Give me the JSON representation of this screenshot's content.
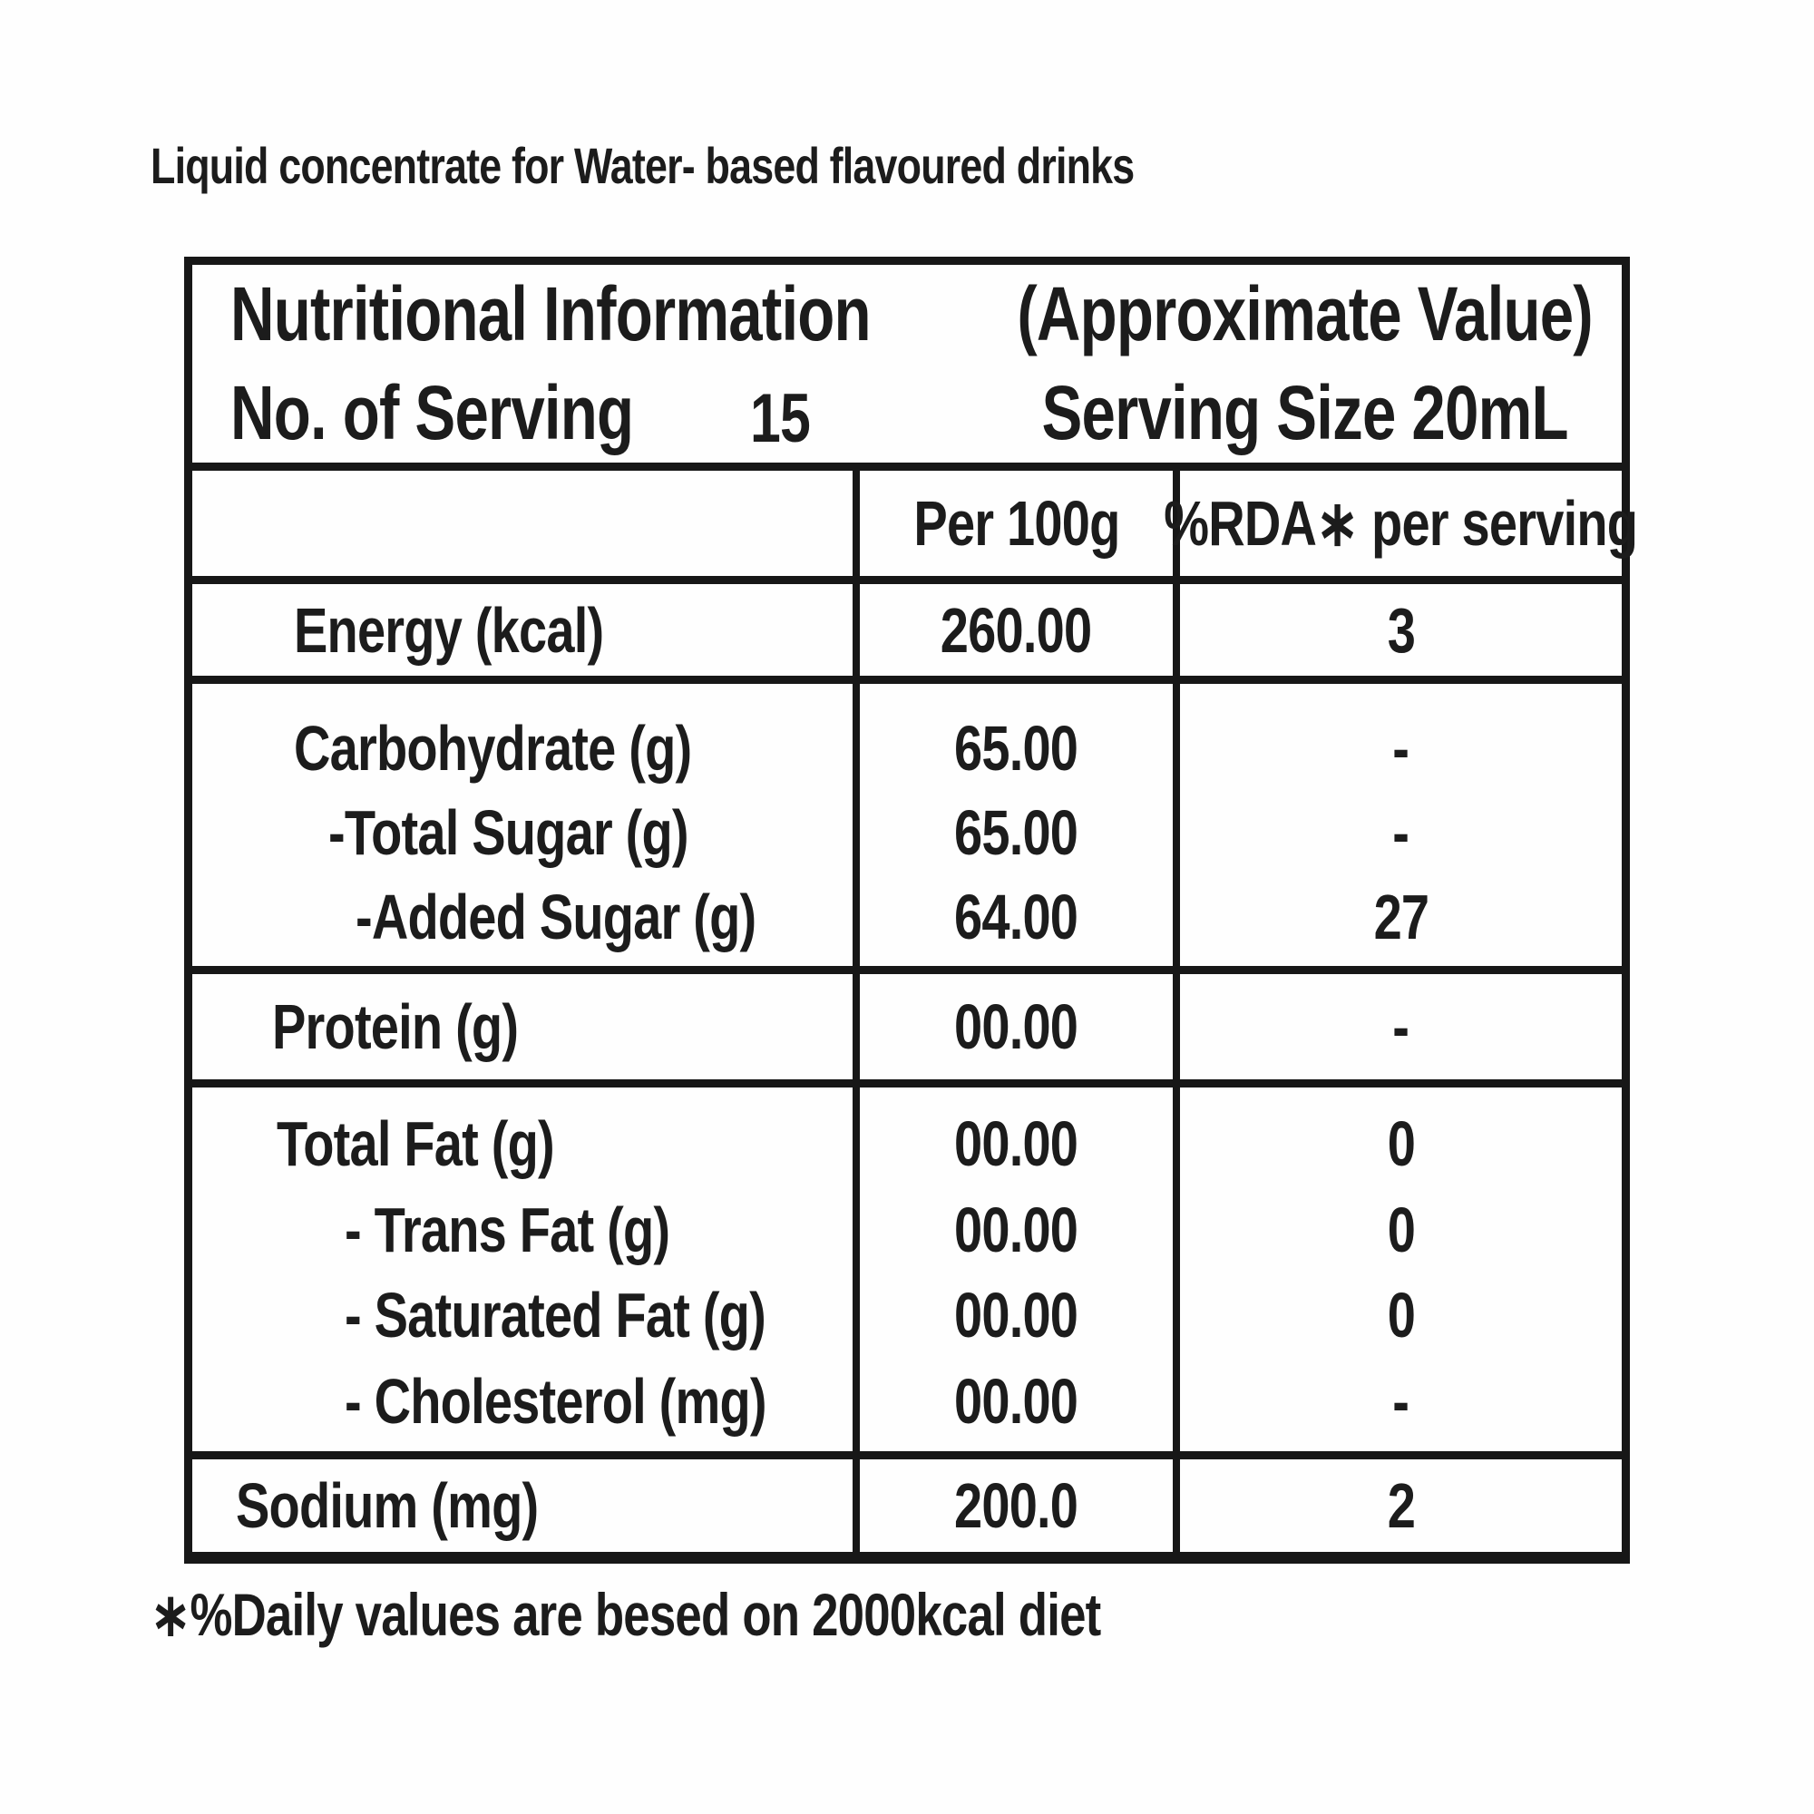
{
  "title": "Liquid concentrate for Water- based flavoured drinks",
  "table": {
    "header": {
      "name": "Nutritional Information",
      "approx": "(Approximate Value)",
      "servings_label": "No. of Serving",
      "servings_value": "15",
      "serving_size": "Serving Size 20mL"
    },
    "columns": {
      "per100": "Per 100g",
      "rda": "%RDA∗ per serving"
    },
    "rows": [
      {
        "group": "energy",
        "lines": [
          {
            "label": "Energy (kcal)",
            "per100": "260.00",
            "rda": "3"
          }
        ]
      },
      {
        "group": "carbohydrate",
        "lines": [
          {
            "label": "Carbohydrate (g)",
            "per100": "65.00",
            "rda": "-"
          },
          {
            "label": "-Total Sugar (g)",
            "per100": "65.00",
            "rda": "-"
          },
          {
            "label": "-Added Sugar (g)",
            "per100": "64.00",
            "rda": "27"
          }
        ]
      },
      {
        "group": "protein",
        "lines": [
          {
            "label": "Protein (g)",
            "per100": "00.00",
            "rda": "-"
          }
        ]
      },
      {
        "group": "fat",
        "lines": [
          {
            "label": "Total Fat (g)",
            "per100": "00.00",
            "rda": "0"
          },
          {
            "label": "- Trans Fat (g)",
            "per100": "00.00",
            "rda": "0"
          },
          {
            "label": "- Saturated Fat (g)",
            "per100": "00.00",
            "rda": "0"
          },
          {
            "label": "- Cholesterol (mg)",
            "per100": "00.00",
            "rda": "-"
          }
        ]
      },
      {
        "group": "sodium",
        "lines": [
          {
            "label": "Sodium (mg)",
            "per100": "200.0",
            "rda": "2"
          }
        ]
      }
    ]
  },
  "footnote": "∗%Daily values are besed on 2000kcal diet",
  "colors": {
    "border": "#171717",
    "text": "#1c1c1c",
    "background": "#fefefe"
  }
}
